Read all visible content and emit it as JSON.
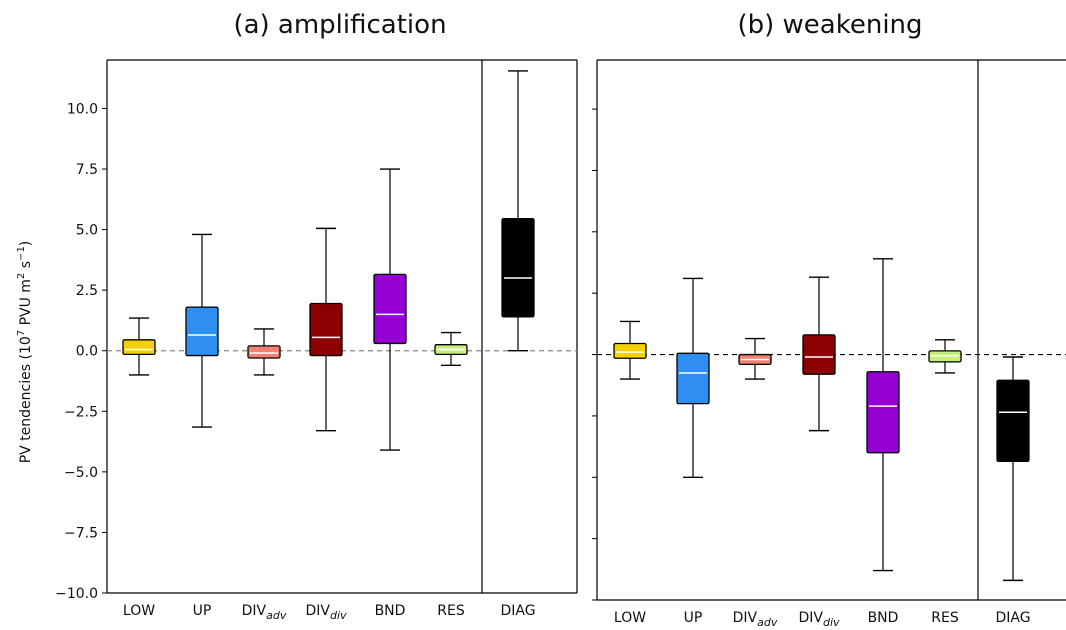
{
  "chart_data": [
    {
      "type": "box",
      "title": "(a) amplification",
      "ylabel": "PV tendencies (10",
      "ylabel_exp": "7",
      "ylabel_mid": " PVU m",
      "ylabel_exp2": "2",
      "ylabel_mid2": " s",
      "ylabel_exp3": "−1",
      "ylabel_end": ")",
      "ylim": [
        -10,
        12
      ],
      "yticks": [
        -10,
        -7.5,
        -5,
        -2.5,
        0,
        2.5,
        5,
        7.5,
        10
      ],
      "ytick_labels": [
        "−10.0",
        "−7.5",
        "−5.0",
        "−2.5",
        "0.0",
        "2.5",
        "5.0",
        "7.5",
        "10.0"
      ],
      "zero_line": "dashed gray",
      "separator_before": "DIAG",
      "boxes": [
        {
          "label": "LOW",
          "sub": "",
          "color": "#f5d000",
          "whisker_low": -1.0,
          "q1": -0.15,
          "median": 0.05,
          "q3": 0.45,
          "whisker_high": 1.35
        },
        {
          "label": "UP",
          "sub": "",
          "color": "#2e8ff0",
          "whisker_low": -3.15,
          "q1": -0.2,
          "median": 0.65,
          "q3": 1.8,
          "whisker_high": 4.8
        },
        {
          "label": "DIV",
          "sub": "adv",
          "color": "#f28072",
          "whisker_low": -1.0,
          "q1": -0.3,
          "median": -0.1,
          "q3": 0.2,
          "whisker_high": 0.9
        },
        {
          "label": "DIV",
          "sub": "div",
          "color": "#8b0000",
          "whisker_low": -3.3,
          "q1": -0.2,
          "median": 0.55,
          "q3": 1.95,
          "whisker_high": 5.05
        },
        {
          "label": "BND",
          "sub": "",
          "color": "#9400d3",
          "whisker_low": -4.1,
          "q1": 0.3,
          "median": 1.5,
          "q3": 3.15,
          "whisker_high": 7.5
        },
        {
          "label": "RES",
          "sub": "",
          "color": "#c5ee7a",
          "whisker_low": -0.6,
          "q1": -0.15,
          "median": 0.05,
          "q3": 0.25,
          "whisker_high": 0.75
        },
        {
          "label": "DIAG",
          "sub": "",
          "color": "#000000",
          "whisker_low": 0.0,
          "q1": 1.4,
          "median": 3.0,
          "q3": 5.45,
          "whisker_high": 11.55
        }
      ]
    },
    {
      "type": "box",
      "title": "(b) weakening",
      "ylim": [
        -10,
        12
      ],
      "yticks": [
        -10,
        -7.5,
        -5,
        -2.5,
        0,
        2.5,
        5,
        7.5,
        10
      ],
      "zero_line": "dashed black",
      "separator_before": "DIAG",
      "boxes": [
        {
          "label": "LOW",
          "sub": "",
          "color": "#f5d000",
          "whisker_low": -1.0,
          "q1": -0.15,
          "median": 0.1,
          "q3": 0.45,
          "whisker_high": 1.35
        },
        {
          "label": "UP",
          "sub": "",
          "color": "#2e8ff0",
          "whisker_low": -5.0,
          "q1": -2.0,
          "median": -0.75,
          "q3": 0.05,
          "whisker_high": 3.1
        },
        {
          "label": "DIV",
          "sub": "adv",
          "color": "#f28072",
          "whisker_low": -1.0,
          "q1": -0.4,
          "median": -0.2,
          "q3": 0.0,
          "whisker_high": 0.65
        },
        {
          "label": "DIV",
          "sub": "div",
          "color": "#8b0000",
          "whisker_low": -3.1,
          "q1": -0.8,
          "median": -0.1,
          "q3": 0.8,
          "whisker_high": 3.15
        },
        {
          "label": "BND",
          "sub": "",
          "color": "#9400d3",
          "whisker_low": -8.8,
          "q1": -4.0,
          "median": -2.1,
          "q3": -0.7,
          "whisker_high": 3.9
        },
        {
          "label": "RES",
          "sub": "",
          "color": "#c5ee7a",
          "whisker_low": -0.75,
          "q1": -0.3,
          "median": -0.05,
          "q3": 0.15,
          "whisker_high": 0.6
        },
        {
          "label": "DIAG",
          "sub": "",
          "color": "#000000",
          "whisker_low": -9.2,
          "q1": -4.35,
          "median": -2.35,
          "q3": -1.05,
          "whisker_high": -0.1
        }
      ]
    }
  ]
}
